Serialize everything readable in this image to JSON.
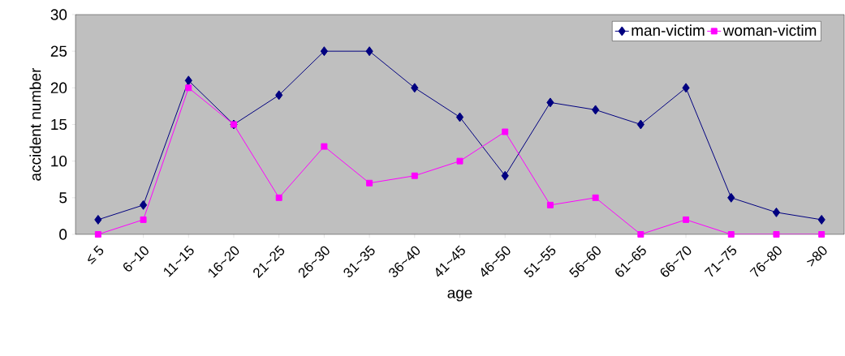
{
  "chart_data": {
    "type": "line",
    "xlabel": "age",
    "ylabel": "accident number",
    "categories": [
      "≤ 5",
      "6~10",
      "11~15",
      "16~20",
      "21~25",
      "26~30",
      "31~35",
      "36~40",
      "41~45",
      "46~50",
      "51~55",
      "56~60",
      "61~65",
      "66~70",
      "71~75",
      "76~80",
      ">80"
    ],
    "ylim": [
      0,
      30
    ],
    "yticks": [
      0,
      5,
      10,
      15,
      20,
      25,
      30
    ],
    "grid": false,
    "legend": "top right",
    "series": [
      {
        "name": "man-victim",
        "color": "#000080",
        "marker": "diamond",
        "values": [
          2,
          4,
          21,
          15,
          19,
          25,
          25,
          20,
          16,
          8,
          18,
          17,
          15,
          20,
          5,
          3,
          2
        ]
      },
      {
        "name": "woman-victim",
        "color": "#ff00ff",
        "marker": "square",
        "values": [
          0,
          2,
          20,
          15,
          5,
          12,
          7,
          8,
          10,
          14,
          4,
          5,
          0,
          2,
          0,
          0,
          0
        ]
      }
    ]
  }
}
